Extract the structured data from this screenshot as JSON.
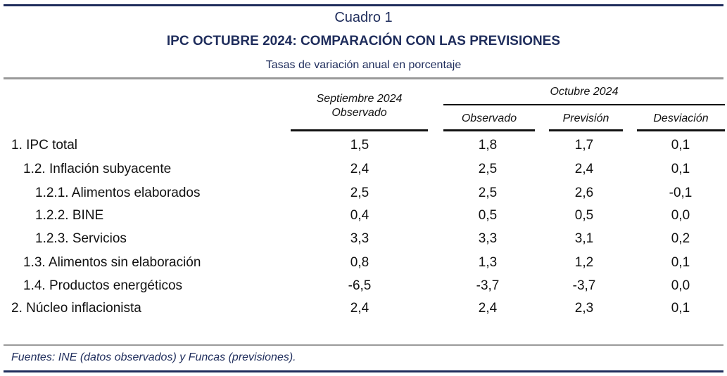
{
  "header": {
    "number": "Cuadro 1",
    "title": "IPC OCTUBRE 2024: COMPARACIÓN CON LAS PREVISIONES",
    "subtitle": "Tasas de variación anual en porcentaje"
  },
  "columns": {
    "sep_line1": "Septiembre 2024",
    "sep_line2": "Observado",
    "oct_group": "Octubre 2024",
    "observado": "Observado",
    "prevision": "Previsión",
    "desviacion": "Desviación"
  },
  "rows": [
    {
      "label": "1. IPC total",
      "sep": "1,5",
      "obs": "1,8",
      "prev": "1,7",
      "desv": "0,1"
    },
    {
      "label": "1.2. Inflación subyacente",
      "sep": "2,4",
      "obs": "2,5",
      "prev": "2,4",
      "desv": "0,1"
    },
    {
      "label": "1.2.1. Alimentos elaborados",
      "sep": "2,5",
      "obs": "2,5",
      "prev": "2,6",
      "desv": "-0,1"
    },
    {
      "label": "1.2.2. BINE",
      "sep": "0,4",
      "obs": "0,5",
      "prev": "0,5",
      "desv": "0,0"
    },
    {
      "label": "1.2.3. Servicios",
      "sep": "3,3",
      "obs": "3,3",
      "prev": "3,1",
      "desv": "0,2"
    },
    {
      "label": "1.3. Alimentos sin elaboración",
      "sep": "0,8",
      "obs": "1,3",
      "prev": "1,2",
      "desv": "0,1"
    },
    {
      "label": "1.4. Productos energéticos",
      "sep": "-6,5",
      "obs": "-3,7",
      "prev": "-3,7",
      "desv": "0,0"
    },
    {
      "label": "2. Núcleo inflacionista",
      "sep": "2,4",
      "obs": "2,4",
      "prev": "2,3",
      "desv": "0,1"
    }
  ],
  "footer": "Fuentes: INE (datos observados) y Funcas (previsiones).",
  "colors": {
    "title": "#1f2d5c",
    "rule": "#1f2d5c",
    "text": "#111111"
  }
}
